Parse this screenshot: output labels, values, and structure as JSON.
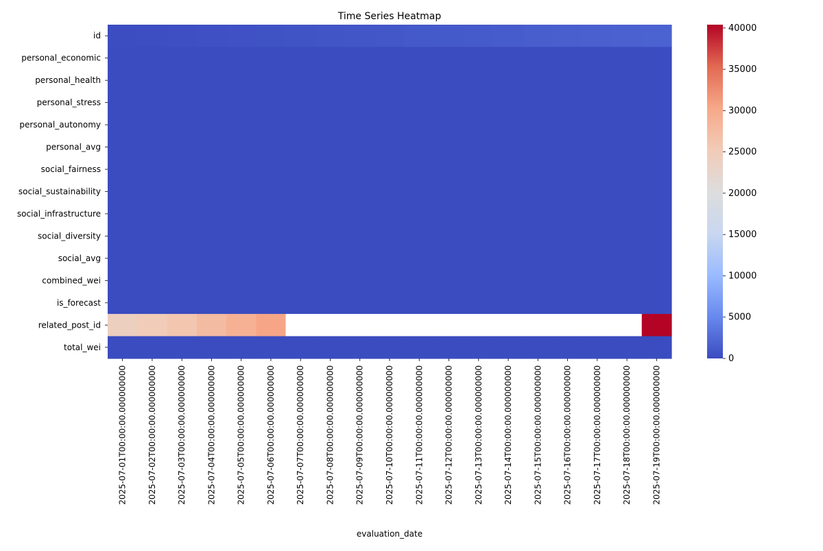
{
  "chart_data": {
    "type": "heatmap",
    "title": "Time Series Heatmap",
    "xlabel": "evaluation_date",
    "ylabel": "",
    "colormap": "coolwarm",
    "colormap_stops": [
      "#3b4cc0",
      "#6889ee",
      "#9abbff",
      "#c9d7f0",
      "#dddddd",
      "#f2cbb7",
      "#f7a889",
      "#e26952",
      "#b40426"
    ],
    "missing_color": "#ffffff",
    "vmin": 0,
    "vmax": 40400,
    "colorbar_ticks": [
      0,
      5000,
      10000,
      15000,
      20000,
      25000,
      30000,
      35000,
      40000
    ],
    "x": [
      "2025-07-01T00:00:00.000000000",
      "2025-07-02T00:00:00.000000000",
      "2025-07-03T00:00:00.000000000",
      "2025-07-04T00:00:00.000000000",
      "2025-07-05T00:00:00.000000000",
      "2025-07-06T00:00:00.000000000",
      "2025-07-07T00:00:00.000000000",
      "2025-07-08T00:00:00.000000000",
      "2025-07-09T00:00:00.000000000",
      "2025-07-10T00:00:00.000000000",
      "2025-07-11T00:00:00.000000000",
      "2025-07-12T00:00:00.000000000",
      "2025-07-13T00:00:00.000000000",
      "2025-07-14T00:00:00.000000000",
      "2025-07-15T00:00:00.000000000",
      "2025-07-16T00:00:00.000000000",
      "2025-07-17T00:00:00.000000000",
      "2025-07-18T00:00:00.000000000",
      "2025-07-19T00:00:00.000000000"
    ],
    "y": [
      "id",
      "personal_economic",
      "personal_health",
      "personal_stress",
      "personal_autonomy",
      "personal_avg",
      "social_fairness",
      "social_sustainability",
      "social_infrastructure",
      "social_diversity",
      "social_avg",
      "combined_wei",
      "is_forecast",
      "related_post_id",
      "total_wei"
    ],
    "values": [
      [
        50,
        150,
        250,
        350,
        450,
        550,
        650,
        750,
        850,
        950,
        1050,
        1150,
        1250,
        1350,
        1450,
        1550,
        1650,
        1750,
        1850
      ],
      [
        1,
        1,
        1,
        1,
        1,
        1,
        1,
        1,
        1,
        1,
        1,
        1,
        1,
        1,
        1,
        1,
        1,
        1,
        1
      ],
      [
        1,
        1,
        1,
        1,
        1,
        1,
        1,
        1,
        1,
        1,
        1,
        1,
        1,
        1,
        1,
        1,
        1,
        1,
        1
      ],
      [
        1,
        1,
        1,
        1,
        1,
        1,
        1,
        1,
        1,
        1,
        1,
        1,
        1,
        1,
        1,
        1,
        1,
        1,
        1
      ],
      [
        1,
        1,
        1,
        1,
        1,
        1,
        1,
        1,
        1,
        1,
        1,
        1,
        1,
        1,
        1,
        1,
        1,
        1,
        1
      ],
      [
        1,
        1,
        1,
        1,
        1,
        1,
        1,
        1,
        1,
        1,
        1,
        1,
        1,
        1,
        1,
        1,
        1,
        1,
        1
      ],
      [
        1,
        1,
        1,
        1,
        1,
        1,
        1,
        1,
        1,
        1,
        1,
        1,
        1,
        1,
        1,
        1,
        1,
        1,
        1
      ],
      [
        1,
        1,
        1,
        1,
        1,
        1,
        1,
        1,
        1,
        1,
        1,
        1,
        1,
        1,
        1,
        1,
        1,
        1,
        1
      ],
      [
        1,
        1,
        1,
        1,
        1,
        1,
        1,
        1,
        1,
        1,
        1,
        1,
        1,
        1,
        1,
        1,
        1,
        1,
        1
      ],
      [
        1,
        1,
        1,
        1,
        1,
        1,
        1,
        1,
        1,
        1,
        1,
        1,
        1,
        1,
        1,
        1,
        1,
        1,
        1
      ],
      [
        1,
        1,
        1,
        1,
        1,
        1,
        1,
        1,
        1,
        1,
        1,
        1,
        1,
        1,
        1,
        1,
        1,
        1,
        1
      ],
      [
        1,
        1,
        1,
        1,
        1,
        1,
        1,
        1,
        1,
        1,
        1,
        1,
        1,
        1,
        1,
        1,
        1,
        1,
        1
      ],
      [
        0,
        0,
        0,
        0,
        0,
        0,
        0,
        0,
        0,
        0,
        0,
        0,
        0,
        0,
        0,
        0,
        0,
        0,
        0
      ],
      [
        24000,
        25000,
        26000,
        27500,
        29000,
        30500,
        null,
        null,
        null,
        null,
        null,
        null,
        null,
        null,
        null,
        null,
        null,
        null,
        40400
      ],
      [
        1,
        1,
        1,
        1,
        1,
        1,
        1,
        1,
        1,
        1,
        1,
        1,
        1,
        1,
        1,
        1,
        1,
        1,
        1
      ]
    ],
    "grid": false,
    "legend": "colorbar-right"
  }
}
